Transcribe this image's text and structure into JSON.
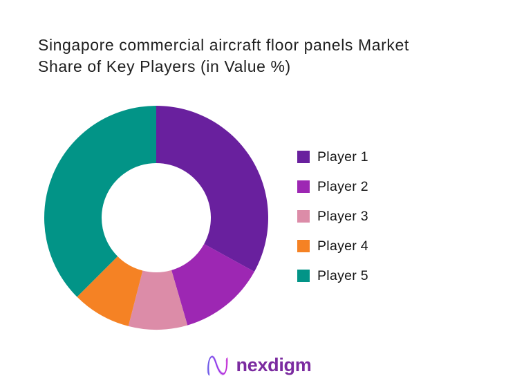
{
  "page": {
    "background_color": "#FFFFFF"
  },
  "header": {
    "title": "Singapore commercial aircraft floor panels Market Share of Key Players (in Value %)",
    "title_color": "#1F1F1F"
  },
  "chart_data": {
    "type": "pie",
    "subtype": "donut",
    "title": "Singapore commercial aircraft floor panels Market Share of Key Players (in Value %)",
    "labels": [
      "Player 1",
      "Player 2",
      "Player 3",
      "Player 4",
      "Player 5"
    ],
    "values": [
      33,
      12.5,
      8.5,
      8.5,
      37.5
    ],
    "values_note": "percent of value market share, estimated from arc angles; no data labels shown in chart",
    "colors": [
      "#69209E",
      "#9D27B3",
      "#DC8CA8",
      "#F58224",
      "#029487"
    ],
    "start_angle_deg": 0,
    "direction": "clockwise",
    "donut_hole_ratio": 0.49,
    "legend_position": "right",
    "data_labels_shown": false
  },
  "footer": {
    "brand_text": "nexdigm",
    "brand_color": "#7B2BA0",
    "logo_icon": "nexdigm-wave-n-icon",
    "logo_gradient": [
      "#6D5BE8",
      "#9333EA",
      "#C026D3"
    ]
  }
}
